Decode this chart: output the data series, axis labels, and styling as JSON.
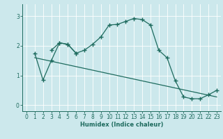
{
  "xlabel": "Humidex (Indice chaleur)",
  "bg_color": "#cce8ec",
  "line_color": "#1e6b5e",
  "grid_color": "#ffffff",
  "xlim": [
    -0.5,
    23.5
  ],
  "ylim": [
    -0.2,
    3.4
  ],
  "xticks": [
    0,
    1,
    2,
    3,
    4,
    5,
    6,
    7,
    8,
    9,
    10,
    11,
    12,
    13,
    14,
    15,
    16,
    17,
    18,
    19,
    20,
    21,
    22,
    23
  ],
  "yticks": [
    0,
    1,
    2,
    3
  ],
  "line1_x": [
    1,
    2,
    3,
    4,
    5,
    6,
    7,
    8,
    9,
    10,
    11,
    12,
    13,
    14,
    15,
    16,
    17,
    18,
    19,
    20,
    21,
    22,
    23
  ],
  "line1_y": [
    1.75,
    0.85,
    1.5,
    2.1,
    2.05,
    1.75,
    1.85,
    2.05,
    2.3,
    2.7,
    2.72,
    2.82,
    2.92,
    2.88,
    2.7,
    1.85,
    1.6,
    0.82,
    0.28,
    0.22,
    0.22,
    0.35,
    0.5
  ],
  "line2_x": [
    3,
    4,
    5,
    6
  ],
  "line2_y": [
    1.85,
    2.1,
    2.05,
    1.75
  ],
  "trend_x": [
    1,
    23
  ],
  "trend_y": [
    1.6,
    0.28
  ],
  "figsize": [
    3.2,
    2.0
  ],
  "dpi": 100
}
